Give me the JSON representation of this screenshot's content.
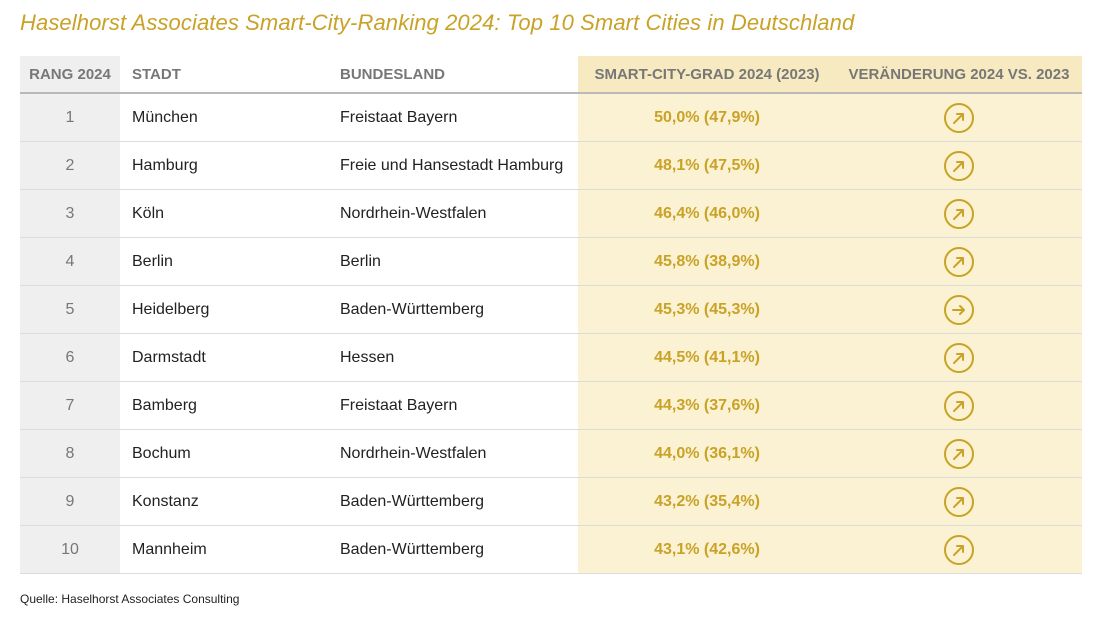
{
  "title": "Haselhorst Associates Smart-City-Ranking 2024: Top 10 Smart Cities in Deutschland",
  "headers": {
    "rank": "RANG 2024",
    "city": "STADT",
    "state": "BUNDESLAND",
    "grade": "SMART-CITY-GRAD 2024 (2023)",
    "change": "VERÄNDERUNG 2024 VS. 2023"
  },
  "accent_color": "#c9a227",
  "rows": [
    {
      "rank": "1",
      "city": "München",
      "state": "Freistaat Bayern",
      "grade": "50,0% (47,9%)",
      "change_icon": "arrow-up-right-icon"
    },
    {
      "rank": "2",
      "city": "Hamburg",
      "state": "Freie und Hansestadt Hamburg",
      "grade": "48,1% (47,5%)",
      "change_icon": "arrow-up-right-icon"
    },
    {
      "rank": "3",
      "city": "Köln",
      "state": "Nordrhein-Westfalen",
      "grade": "46,4% (46,0%)",
      "change_icon": "arrow-up-right-icon"
    },
    {
      "rank": "4",
      "city": "Berlin",
      "state": "Berlin",
      "grade": "45,8% (38,9%)",
      "change_icon": "arrow-up-right-icon"
    },
    {
      "rank": "5",
      "city": "Heidelberg",
      "state": "Baden-Württemberg",
      "grade": "45,3% (45,3%)",
      "change_icon": "arrow-right-icon"
    },
    {
      "rank": "6",
      "city": "Darmstadt",
      "state": "Hessen",
      "grade": "44,5% (41,1%)",
      "change_icon": "arrow-up-right-icon"
    },
    {
      "rank": "7",
      "city": "Bamberg",
      "state": "Freistaat Bayern",
      "grade": "44,3% (37,6%)",
      "change_icon": "arrow-up-right-icon"
    },
    {
      "rank": "8",
      "city": "Bochum",
      "state": "Nordrhein-Westfalen",
      "grade": "44,0% (36,1%)",
      "change_icon": "arrow-up-right-icon"
    },
    {
      "rank": "9",
      "city": "Konstanz",
      "state": "Baden-Württemberg",
      "grade": "43,2% (35,4%)",
      "change_icon": "arrow-up-right-icon"
    },
    {
      "rank": "10",
      "city": "Mannheim",
      "state": "Baden-Württemberg",
      "grade": "43,1% (42,6%)",
      "change_icon": "arrow-up-right-icon"
    }
  ],
  "source": "Quelle: Haselhorst Associates Consulting"
}
